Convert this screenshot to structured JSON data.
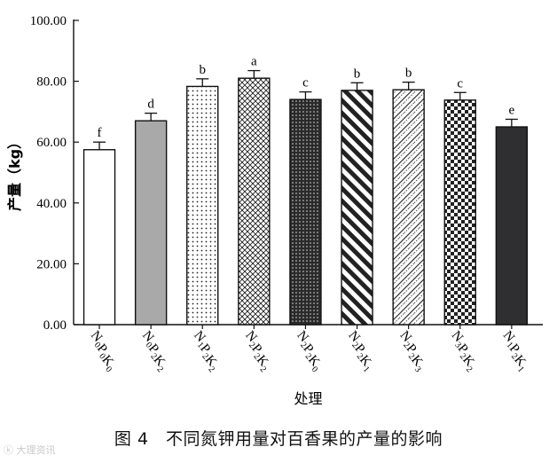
{
  "chart_data": {
    "type": "bar",
    "categories": [
      {
        "base": "N",
        "parts": [
          [
            "N",
            "0"
          ],
          [
            "P",
            "0"
          ],
          [
            "K",
            "0"
          ]
        ]
      },
      {
        "base": "N",
        "parts": [
          [
            "N",
            "0"
          ],
          [
            "P",
            "2"
          ],
          [
            "K",
            "2"
          ]
        ]
      },
      {
        "base": "N",
        "parts": [
          [
            "N",
            "1"
          ],
          [
            "P",
            "2"
          ],
          [
            "K",
            "2"
          ]
        ]
      },
      {
        "base": "N",
        "parts": [
          [
            "N",
            "2"
          ],
          [
            "P",
            "2"
          ],
          [
            "K",
            "2"
          ]
        ]
      },
      {
        "base": "N",
        "parts": [
          [
            "N",
            "2"
          ],
          [
            "P",
            "2"
          ],
          [
            "K",
            "0"
          ]
        ]
      },
      {
        "base": "N",
        "parts": [
          [
            "N",
            "2"
          ],
          [
            "P",
            "2"
          ],
          [
            "K",
            "1"
          ]
        ]
      },
      {
        "base": "N",
        "parts": [
          [
            "N",
            "2"
          ],
          [
            "P",
            "2"
          ],
          [
            "K",
            "3"
          ]
        ]
      },
      {
        "base": "N",
        "parts": [
          [
            "N",
            "3"
          ],
          [
            "P",
            "2"
          ],
          [
            "K",
            "2"
          ]
        ]
      },
      {
        "base": "N",
        "parts": [
          [
            "N",
            "1"
          ],
          [
            "P",
            "2"
          ],
          [
            "K",
            "1"
          ]
        ]
      }
    ],
    "category_labels": [
      "N0P0K0",
      "N0P2K2",
      "N1P2K2",
      "N2P2K2",
      "N2P2K0",
      "N2P2K1",
      "N2P2K3",
      "N3P2K2",
      "N1P2K1"
    ],
    "values": [
      57.5,
      67.0,
      78.3,
      81.0,
      74.0,
      77.0,
      77.2,
      73.8,
      65.0
    ],
    "errors": [
      2.5,
      2.5,
      2.5,
      2.5,
      2.5,
      2.5,
      2.5,
      2.5,
      2.5
    ],
    "significance": [
      "f",
      "d",
      "b",
      "a",
      "c",
      "b",
      "b",
      "c",
      "e"
    ],
    "patterns": [
      "white",
      "gray",
      "dots",
      "crosshatch",
      "dense-dots",
      "diagonal-stripes",
      "diagonal-hatch",
      "checker",
      "dark"
    ],
    "yticks": [
      "0.00",
      "20.00",
      "40.00",
      "60.00",
      "80.00",
      "100.00"
    ],
    "ylim": [
      0,
      100
    ],
    "xlabel": "处理",
    "ylabel": "产量（kg）",
    "grid": false
  },
  "caption": "图 4　不同氮钾用量对百香果的产量的影响",
  "watermark": "ⓚ 大理资讯"
}
